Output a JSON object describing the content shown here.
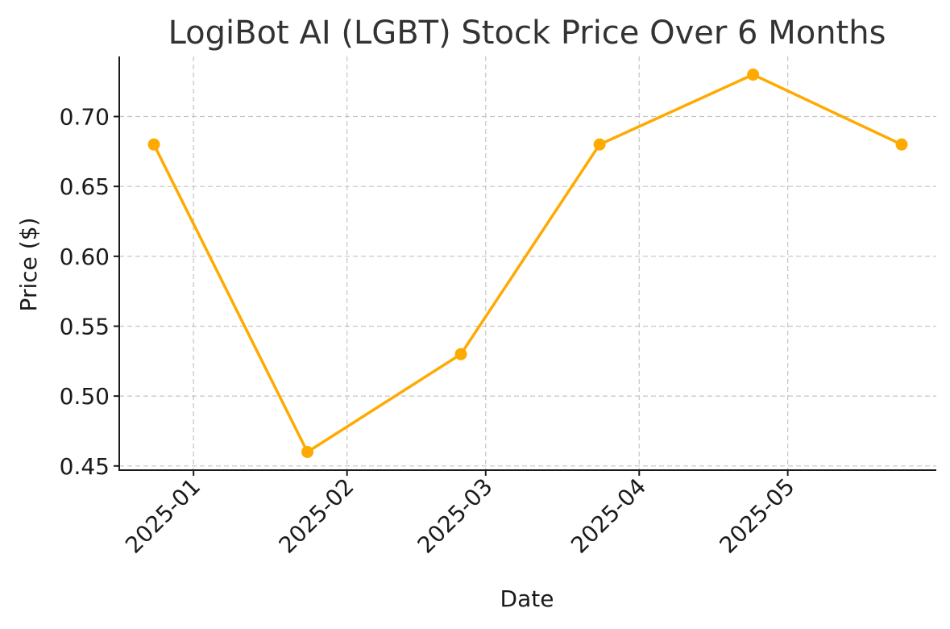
{
  "chart_data": {
    "type": "line",
    "title": "LogiBot AI (LGBT) Stock Price Over 6 Months",
    "xlabel": "Date",
    "ylabel": "Price ($)",
    "x": [
      "2024-12-24",
      "2025-01-24",
      "2025-02-24",
      "2025-03-24",
      "2025-04-24",
      "2025-05-24"
    ],
    "series": [
      {
        "values": [
          0.68,
          0.46,
          0.53,
          0.68,
          0.73,
          0.68
        ]
      }
    ],
    "ylim": [
      0.447,
      0.743
    ],
    "xlim": [
      "2024-12-17",
      "2025-05-31"
    ],
    "yticks": [
      0.45,
      0.5,
      0.55,
      0.6,
      0.65,
      0.7
    ],
    "ytick_labels": [
      "0.45",
      "0.50",
      "0.55",
      "0.60",
      "0.65",
      "0.70"
    ],
    "xticks": [
      "2025-01-01",
      "2025-02-01",
      "2025-03-01",
      "2025-04-01",
      "2025-05-01"
    ],
    "xtick_labels": [
      "2025-01",
      "2025-02",
      "2025-03",
      "2025-04",
      "2025-05"
    ],
    "grid": true,
    "line_color": "#FFAA00",
    "marker": "circle"
  }
}
